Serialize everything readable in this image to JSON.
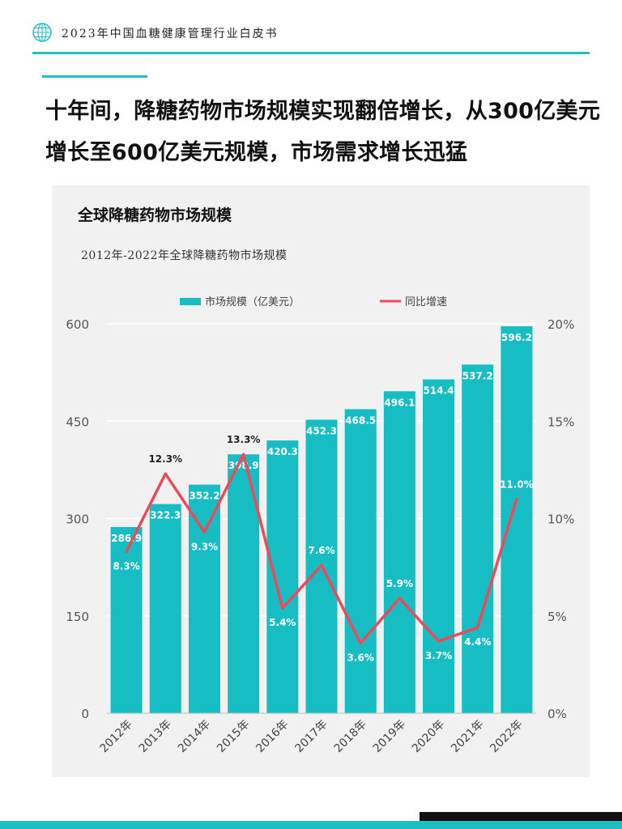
{
  "header": {
    "title": "2023年中国血糖健康管理行业白皮书"
  },
  "headline": "十年间，降糖药物市场规模实现翻倍增长，从300亿美元增长至600亿美元规模，市场需求增长迅猛",
  "colors": {
    "accent": "#1bbfc4",
    "bar": "#16bec3",
    "line": "#ea4b5a"
  },
  "chart_data": {
    "type": "bar",
    "title": "全球降糖药物市场规模",
    "subtitle": "2012年-2022年全球降糖药物市场规模",
    "categories": [
      "2012年",
      "2013年",
      "2014年",
      "2015年",
      "2016年",
      "2017年",
      "2018年",
      "2019年",
      "2020年",
      "2021年",
      "2022年"
    ],
    "series": [
      {
        "name": "市场规模（亿美元）",
        "type": "bar",
        "axis": "left",
        "values": [
          286.9,
          322.3,
          352.2,
          398.9,
          420.3,
          452.3,
          468.5,
          496.1,
          514.4,
          537.2,
          596.2
        ],
        "labels": [
          "286.9",
          "322.3",
          "352.2",
          "398.9",
          "420.3",
          "452.3",
          "468.5",
          "496.1",
          "514.4",
          "537.2",
          "596.2"
        ]
      },
      {
        "name": "同比增速",
        "type": "line",
        "axis": "right",
        "values": [
          8.3,
          12.3,
          9.3,
          13.3,
          5.4,
          7.6,
          3.6,
          5.9,
          3.7,
          4.4,
          11.0
        ],
        "labels": [
          "8.3%",
          "12.3%",
          "9.3%",
          "13.3%",
          "5.4%",
          "7.6%",
          "3.6%",
          "5.9%",
          "3.7%",
          "4.4%",
          "11.0%"
        ]
      }
    ],
    "y_left": {
      "min": 0,
      "max": 600,
      "ticks": [
        "0",
        "150",
        "300",
        "450",
        "600"
      ]
    },
    "y_right": {
      "min": 0,
      "max": 20,
      "ticks": [
        "0%",
        "5%",
        "10%",
        "15%",
        "20%"
      ]
    },
    "grid": true,
    "legend": "top-center"
  }
}
